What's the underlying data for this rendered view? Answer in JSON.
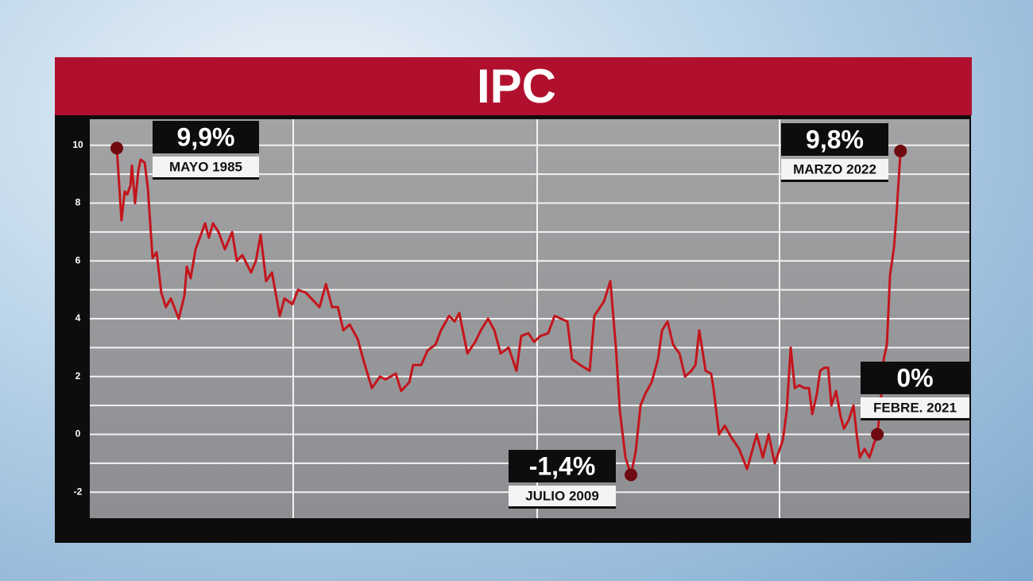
{
  "chart_data": {
    "type": "line",
    "title": "IPC",
    "color": "#c4151c",
    "x": [
      1985.33,
      1985.55,
      1985.7,
      1985.82,
      1985.97,
      1986.04,
      1986.19,
      1986.34,
      1986.45,
      1986.64,
      1986.79,
      1987.01,
      1987.2,
      1987.42,
      1987.64,
      1987.87,
      1988.24,
      1988.51,
      1988.62,
      1988.8,
      1989.03,
      1989.48,
      1989.66,
      1989.85,
      1990.11,
      1990.41,
      1990.75,
      1990.97,
      1991.23,
      1991.64,
      1991.87,
      1992.09,
      1992.35,
      1992.62,
      1992.99,
      1993.21,
      1993.59,
      1993.85,
      1994.22,
      1994.6,
      1994.86,
      1995.16,
      1995.45,
      1995.72,
      1995.98,
      1996.28,
      1996.65,
      1996.95,
      1997.32,
      1997.7,
      1997.96,
      1998.44,
      1998.7,
      1999.08,
      1999.26,
      1999.64,
      1999.94,
      2000.31,
      2000.57,
      2000.95,
      2001.21,
      2001.43,
      2001.81,
      2002.18,
      2002.44,
      2002.78,
      2003.08,
      2003.37,
      2003.75,
      2004.12,
      2004.34,
      2004.68,
      2004.94,
      2005.24,
      2005.61,
      2005.91,
      2006.21,
      2006.51,
      2006.73,
      2007.11,
      2007.56,
      2007.78,
      2008.23,
      2008.53,
      2008.79,
      2008.98,
      2009.24,
      2009.5,
      2009.72,
      2009.95,
      2010.17,
      2010.47,
      2010.77,
      2010.96,
      2011.22,
      2011.48,
      2011.78,
      2012.04,
      2012.34,
      2012.53,
      2012.71,
      2013.01,
      2013.27,
      2013.38,
      2013.64,
      2013.91,
      2014.21,
      2014.58,
      2014.96,
      2015.41,
      2015.7,
      2015.97,
      2016.26,
      2016.64,
      2016.82,
      2017.01,
      2017.2,
      2017.42,
      2017.65,
      2017.87,
      2018.02,
      2018.24,
      2018.39,
      2018.58,
      2018.77,
      2018.92,
      2019.14,
      2019.36,
      2019.51,
      2019.74,
      2019.96,
      2020.11,
      2020.26,
      2020.48,
      2020.71,
      2020.93,
      2021.08,
      2021.23,
      2021.38,
      2021.53,
      2021.68,
      2021.87,
      2021.98,
      2022.17
    ],
    "values": [
      9.9,
      7.4,
      8.4,
      8.3,
      8.6,
      9.3,
      8.0,
      9.1,
      9.5,
      9.4,
      8.5,
      6.1,
      6.3,
      4.9,
      4.4,
      4.7,
      4.0,
      4.8,
      5.8,
      5.4,
      6.4,
      7.3,
      6.8,
      7.3,
      7.0,
      6.4,
      7.0,
      6.0,
      6.2,
      5.6,
      6.0,
      6.9,
      5.3,
      5.6,
      4.1,
      4.7,
      4.5,
      5.0,
      4.9,
      4.6,
      4.4,
      5.2,
      4.4,
      4.4,
      3.6,
      3.8,
      3.3,
      2.5,
      1.6,
      2.0,
      1.9,
      2.1,
      1.5,
      1.8,
      2.4,
      2.4,
      2.9,
      3.1,
      3.6,
      4.1,
      3.9,
      4.2,
      2.8,
      3.2,
      3.6,
      4.0,
      3.6,
      2.8,
      3.0,
      2.2,
      3.4,
      3.5,
      3.2,
      3.4,
      3.5,
      4.1,
      4.0,
      3.9,
      2.6,
      2.4,
      2.2,
      4.1,
      4.6,
      5.3,
      3.0,
      0.8,
      -0.8,
      -1.4,
      -0.6,
      1.0,
      1.4,
      1.8,
      2.6,
      3.6,
      3.9,
      3.1,
      2.8,
      2.0,
      2.2,
      2.4,
      3.6,
      2.2,
      2.1,
      1.6,
      0.0,
      0.3,
      -0.1,
      -0.5,
      -1.2,
      0.0,
      -0.8,
      0.0,
      -1.0,
      -0.2,
      0.8,
      3.0,
      1.6,
      1.7,
      1.6,
      1.6,
      0.7,
      1.4,
      2.2,
      2.3,
      2.3,
      1.0,
      1.5,
      0.6,
      0.2,
      0.5,
      1.0,
      0.0,
      -0.8,
      -0.5,
      -0.8,
      -0.3,
      0.0,
      1.0,
      2.6,
      3.1,
      5.5,
      6.5,
      7.6,
      9.8
    ],
    "xlim": [
      1984.06,
      2025.41
    ],
    "ylim": [
      -2.9,
      10.9
    ],
    "yticks": [
      -2,
      0,
      2,
      4,
      6,
      8,
      10
    ],
    "grid": true,
    "minor_grid": true,
    "annotations": [
      {
        "x": 1985.33,
        "y": 9.9,
        "label": "9,9%",
        "date": "MAYO 1985"
      },
      {
        "x": 2009.5,
        "y": -1.4,
        "label": "-1,4%",
        "date": "JULIO 2009"
      },
      {
        "x": 2022.17,
        "y": 9.8,
        "label": "9,8%",
        "date": "MARZO 2022"
      },
      {
        "x": 2021.08,
        "y": 0,
        "label": "0%",
        "date": "FEBRE. 2021"
      }
    ]
  }
}
